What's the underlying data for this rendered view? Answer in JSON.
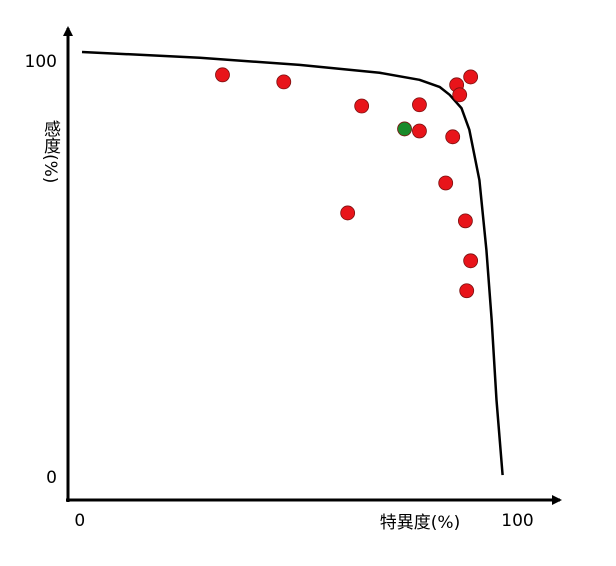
{
  "chart_data": {
    "type": "scatter",
    "xlabel": "特異度(%)",
    "ylabel": "感度(%)",
    "xlim": [
      -2.7,
      112
    ],
    "ylim": [
      -5.3,
      109.6
    ],
    "xticks": [
      0,
      100
    ],
    "yticks": [
      0,
      100
    ],
    "grid": false,
    "series": [
      {
        "type": "line",
        "color": "#000000",
        "x": [
          0.5,
          27.4,
          50.2,
          68.5,
          77.6,
          82.2,
          84.5,
          87.2,
          89,
          91.3,
          92.9,
          94.1,
          95.2,
          96.6
        ],
        "values": [
          102.4,
          101,
          99.3,
          97.4,
          95.7,
          94,
          92.1,
          88.9,
          83.7,
          71.6,
          54.8,
          38,
          18.8,
          0.7
        ]
      },
      {
        "type": "scatter",
        "color": "#e8141a",
        "x": [
          32.6,
          46.6,
          64.4,
          77.6,
          77.6,
          61.2,
          85.2,
          83.6,
          86.1,
          86.8,
          89.3,
          88.1,
          89.3,
          88.4
        ],
        "values": [
          96.9,
          95.2,
          89.4,
          89.7,
          83.4,
          63.7,
          82.0,
          70.9,
          94.5,
          92.1,
          96.4,
          61.8,
          52.2,
          45.0
        ]
      },
      {
        "type": "scatter",
        "color": "#1a8a2a",
        "x": [
          74.2
        ],
        "values": [
          83.9
        ]
      }
    ]
  }
}
